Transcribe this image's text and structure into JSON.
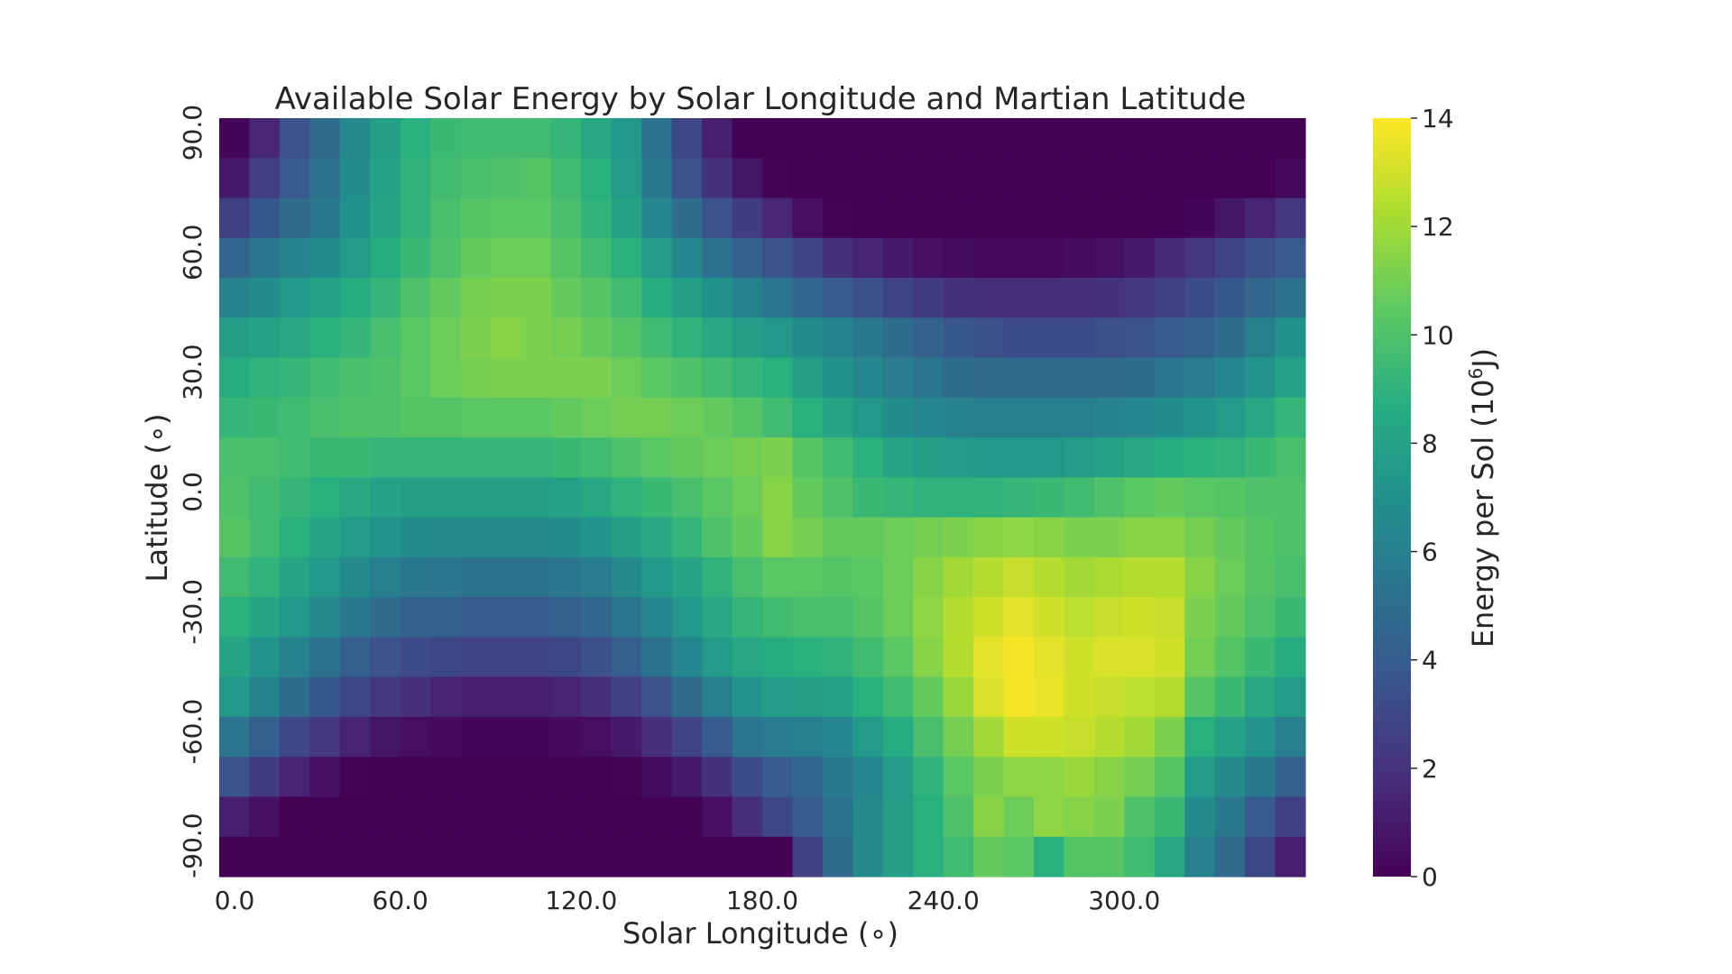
{
  "chart_data": {
    "type": "heatmap",
    "title": "Available Solar Energy by Solar Longitude and Martian Latitude",
    "xlabel": "Solar Longitude (∘)",
    "ylabel": "Latitude (∘)",
    "colorbar_label_prefix": "Energy per Sol (10",
    "colorbar_label_exp": "6",
    "colorbar_label_suffix": "J)",
    "colormap": "viridis",
    "vmin": 0,
    "vmax": 14,
    "x_tick_labels": [
      "0.0",
      "60.0",
      "120.0",
      "180.0",
      "240.0",
      "300.0"
    ],
    "x_tick_columns": [
      0,
      6,
      12,
      18,
      24,
      30
    ],
    "y_tick_labels": [
      "90.0",
      "60.0",
      "30.0",
      "0.0",
      "-30.0",
      "-60.0",
      "-90.0"
    ],
    "y_tick_rows": [
      0,
      3,
      6,
      9,
      12,
      15,
      18
    ],
    "colorbar_ticks": [
      "0",
      "2",
      "4",
      "6",
      "8",
      "10",
      "12",
      "14"
    ],
    "x_start": 0,
    "x_step": 10,
    "y_top": 90,
    "y_step": -10,
    "values": [
      [
        0.2,
        1.5,
        3.5,
        4.8,
        6.5,
        7.8,
        8.8,
        9.4,
        9.6,
        9.6,
        9.6,
        9.2,
        8.4,
        7.4,
        5.2,
        3.0,
        1.2,
        0.0,
        0.0,
        0.0,
        0.0,
        0.0,
        0.0,
        0.0,
        0.0,
        0.0,
        0.0,
        0.0,
        0.0,
        0.0,
        0.0,
        0.0,
        0.0,
        0.0,
        0.0,
        0.0
      ],
      [
        1.0,
        2.5,
        4.0,
        5.2,
        6.8,
        8.0,
        9.0,
        9.6,
        9.8,
        10.0,
        10.2,
        9.6,
        8.8,
        7.6,
        5.6,
        3.6,
        2.0,
        0.8,
        0.1,
        0.0,
        0.0,
        0.0,
        0.0,
        0.0,
        0.0,
        0.0,
        0.0,
        0.0,
        0.0,
        0.0,
        0.0,
        0.0,
        0.0,
        0.0,
        0.0,
        0.3
      ],
      [
        2.6,
        3.8,
        4.8,
        5.6,
        7.0,
        8.2,
        9.0,
        9.8,
        10.2,
        10.4,
        10.4,
        9.8,
        9.0,
        8.0,
        6.4,
        5.0,
        3.5,
        2.4,
        1.5,
        0.5,
        0.1,
        0.0,
        0.0,
        0.0,
        0.0,
        0.0,
        0.0,
        0.0,
        0.0,
        0.0,
        0.0,
        0.0,
        0.2,
        0.8,
        1.4,
        2.2
      ],
      [
        4.6,
        5.4,
        6.2,
        6.8,
        7.6,
        8.6,
        9.4,
        10.0,
        10.6,
        10.8,
        10.8,
        10.2,
        9.6,
        8.8,
        7.6,
        6.4,
        5.2,
        4.4,
        3.6,
        2.8,
        2.0,
        1.4,
        1.0,
        0.6,
        0.4,
        0.3,
        0.3,
        0.3,
        0.4,
        0.6,
        1.0,
        1.6,
        2.2,
        2.8,
        3.4,
        4.0
      ],
      [
        6.2,
        6.8,
        7.4,
        8.0,
        8.6,
        9.2,
        10.0,
        10.6,
        11.0,
        11.2,
        11.2,
        10.6,
        10.2,
        9.6,
        8.6,
        7.8,
        7.0,
        6.2,
        5.4,
        4.6,
        4.0,
        3.4,
        2.8,
        2.4,
        2.0,
        1.8,
        1.8,
        1.8,
        1.9,
        2.0,
        2.2,
        2.6,
        3.2,
        3.8,
        4.6,
        5.2
      ],
      [
        7.8,
        8.0,
        8.4,
        8.8,
        9.2,
        9.8,
        10.4,
        10.8,
        11.2,
        11.4,
        11.2,
        11.0,
        10.6,
        10.2,
        9.6,
        9.0,
        8.4,
        7.8,
        7.4,
        6.8,
        6.2,
        5.6,
        5.0,
        4.4,
        3.8,
        3.4,
        3.2,
        3.2,
        3.2,
        3.4,
        3.6,
        4.0,
        4.4,
        5.0,
        6.0,
        7.0
      ],
      [
        8.6,
        9.0,
        9.2,
        9.6,
        9.8,
        10.0,
        10.4,
        10.8,
        11.0,
        11.2,
        11.2,
        11.2,
        11.2,
        10.8,
        10.4,
        10.0,
        9.6,
        9.2,
        8.8,
        7.8,
        7.0,
        6.4,
        5.8,
        5.4,
        5.0,
        4.8,
        4.8,
        4.8,
        4.8,
        4.8,
        5.0,
        5.4,
        5.8,
        6.4,
        7.2,
        8.0
      ],
      [
        9.2,
        9.4,
        9.6,
        9.8,
        10.0,
        10.0,
        10.2,
        10.2,
        10.4,
        10.4,
        10.4,
        10.6,
        10.8,
        11.0,
        11.0,
        10.8,
        10.6,
        10.2,
        9.6,
        8.8,
        8.2,
        7.4,
        6.8,
        6.4,
        6.2,
        6.0,
        6.0,
        6.0,
        6.0,
        6.2,
        6.4,
        6.8,
        7.2,
        7.6,
        8.4,
        9.2
      ],
      [
        9.8,
        9.8,
        9.6,
        9.4,
        9.4,
        9.2,
        9.2,
        9.2,
        9.2,
        9.2,
        9.2,
        9.4,
        9.6,
        10.0,
        10.4,
        10.6,
        10.8,
        11.0,
        11.2,
        10.2,
        9.6,
        8.8,
        8.2,
        7.8,
        7.6,
        7.4,
        7.4,
        7.4,
        7.6,
        8.0,
        8.4,
        8.6,
        8.8,
        9.0,
        9.4,
        9.8
      ],
      [
        10.0,
        9.6,
        9.2,
        8.8,
        8.4,
        8.0,
        7.8,
        7.8,
        7.8,
        7.8,
        7.8,
        8.0,
        8.4,
        9.0,
        9.4,
        9.8,
        10.4,
        10.8,
        11.4,
        10.6,
        10.0,
        9.4,
        9.2,
        9.0,
        9.0,
        9.0,
        9.2,
        9.4,
        9.6,
        10.0,
        10.4,
        10.6,
        10.4,
        10.2,
        10.0,
        10.0
      ],
      [
        10.2,
        9.6,
        8.8,
        8.2,
        7.6,
        7.2,
        6.8,
        6.6,
        6.6,
        6.6,
        6.6,
        6.8,
        7.2,
        7.8,
        8.4,
        9.2,
        10.0,
        10.6,
        11.4,
        11.0,
        10.6,
        10.6,
        10.8,
        11.0,
        11.2,
        11.4,
        11.6,
        11.4,
        11.2,
        11.2,
        11.4,
        11.4,
        11.0,
        10.6,
        10.2,
        10.0
      ],
      [
        9.6,
        9.0,
        8.2,
        7.4,
        6.6,
        6.0,
        5.6,
        5.4,
        5.2,
        5.2,
        5.2,
        5.4,
        5.8,
        6.6,
        7.4,
        8.2,
        9.0,
        9.8,
        10.4,
        10.4,
        10.2,
        10.4,
        10.8,
        11.4,
        12.0,
        12.4,
        12.8,
        12.4,
        12.0,
        12.2,
        12.4,
        12.4,
        11.4,
        10.8,
        10.2,
        9.8
      ],
      [
        8.8,
        8.2,
        7.4,
        6.6,
        5.6,
        4.8,
        4.4,
        4.2,
        4.0,
        4.0,
        4.0,
        4.2,
        4.6,
        5.4,
        6.4,
        7.4,
        8.4,
        9.2,
        9.6,
        9.8,
        9.8,
        10.2,
        10.8,
        11.6,
        12.4,
        13.0,
        13.4,
        13.0,
        12.6,
        12.8,
        13.0,
        12.8,
        11.2,
        10.6,
        10.0,
        9.4
      ],
      [
        8.2,
        7.2,
        6.2,
        5.2,
        4.2,
        3.6,
        3.2,
        3.0,
        2.8,
        2.8,
        2.8,
        3.0,
        3.4,
        4.2,
        5.2,
        6.4,
        7.6,
        8.4,
        8.6,
        8.8,
        9.0,
        9.6,
        10.4,
        11.4,
        12.4,
        13.4,
        13.8,
        13.4,
        13.0,
        13.2,
        13.2,
        13.0,
        11.0,
        10.2,
        9.4,
        8.6
      ],
      [
        7.4,
        6.2,
        5.0,
        3.8,
        3.0,
        2.2,
        1.8,
        1.4,
        1.2,
        1.2,
        1.2,
        1.4,
        1.8,
        2.6,
        3.6,
        4.8,
        6.0,
        7.2,
        7.6,
        7.8,
        8.0,
        8.8,
        9.6,
        10.6,
        11.8,
        13.2,
        13.8,
        13.6,
        13.0,
        12.8,
        12.6,
        12.4,
        10.2,
        9.4,
        8.4,
        7.6
      ],
      [
        5.4,
        4.2,
        3.0,
        2.2,
        1.4,
        0.8,
        0.5,
        0.3,
        0.2,
        0.2,
        0.2,
        0.3,
        0.5,
        1.0,
        1.8,
        2.8,
        4.0,
        5.4,
        5.8,
        6.0,
        6.4,
        7.6,
        8.6,
        9.8,
        11.0,
        12.0,
        13.0,
        13.0,
        12.8,
        12.4,
        12.0,
        11.2,
        8.8,
        8.0,
        7.2,
        6.0
      ],
      [
        3.6,
        2.4,
        1.4,
        0.6,
        0.1,
        0.0,
        0.0,
        0.0,
        0.0,
        0.0,
        0.0,
        0.0,
        0.0,
        0.1,
        0.4,
        1.0,
        2.0,
        3.2,
        4.0,
        4.6,
        5.6,
        6.4,
        7.6,
        9.0,
        10.4,
        11.2,
        11.6,
        11.6,
        11.8,
        11.4,
        11.0,
        10.2,
        7.6,
        6.6,
        5.6,
        4.2
      ],
      [
        1.2,
        0.6,
        0.0,
        0.0,
        0.0,
        0.0,
        0.0,
        0.0,
        0.0,
        0.0,
        0.0,
        0.0,
        0.0,
        0.0,
        0.0,
        0.0,
        0.6,
        1.8,
        3.0,
        4.0,
        5.2,
        6.6,
        7.8,
        8.8,
        10.0,
        11.4,
        10.8,
        11.6,
        11.4,
        11.2,
        10.0,
        9.4,
        6.6,
        5.6,
        4.0,
        2.6
      ],
      [
        0.0,
        0.0,
        0.0,
        0.0,
        0.0,
        0.0,
        0.0,
        0.0,
        0.0,
        0.0,
        0.0,
        0.0,
        0.0,
        0.0,
        0.0,
        0.0,
        0.0,
        0.0,
        0.0,
        2.6,
        5.0,
        6.6,
        7.8,
        8.8,
        9.6,
        10.6,
        10.4,
        8.8,
        10.2,
        10.2,
        9.6,
        8.4,
        6.0,
        4.8,
        3.0,
        1.2
      ]
    ]
  }
}
